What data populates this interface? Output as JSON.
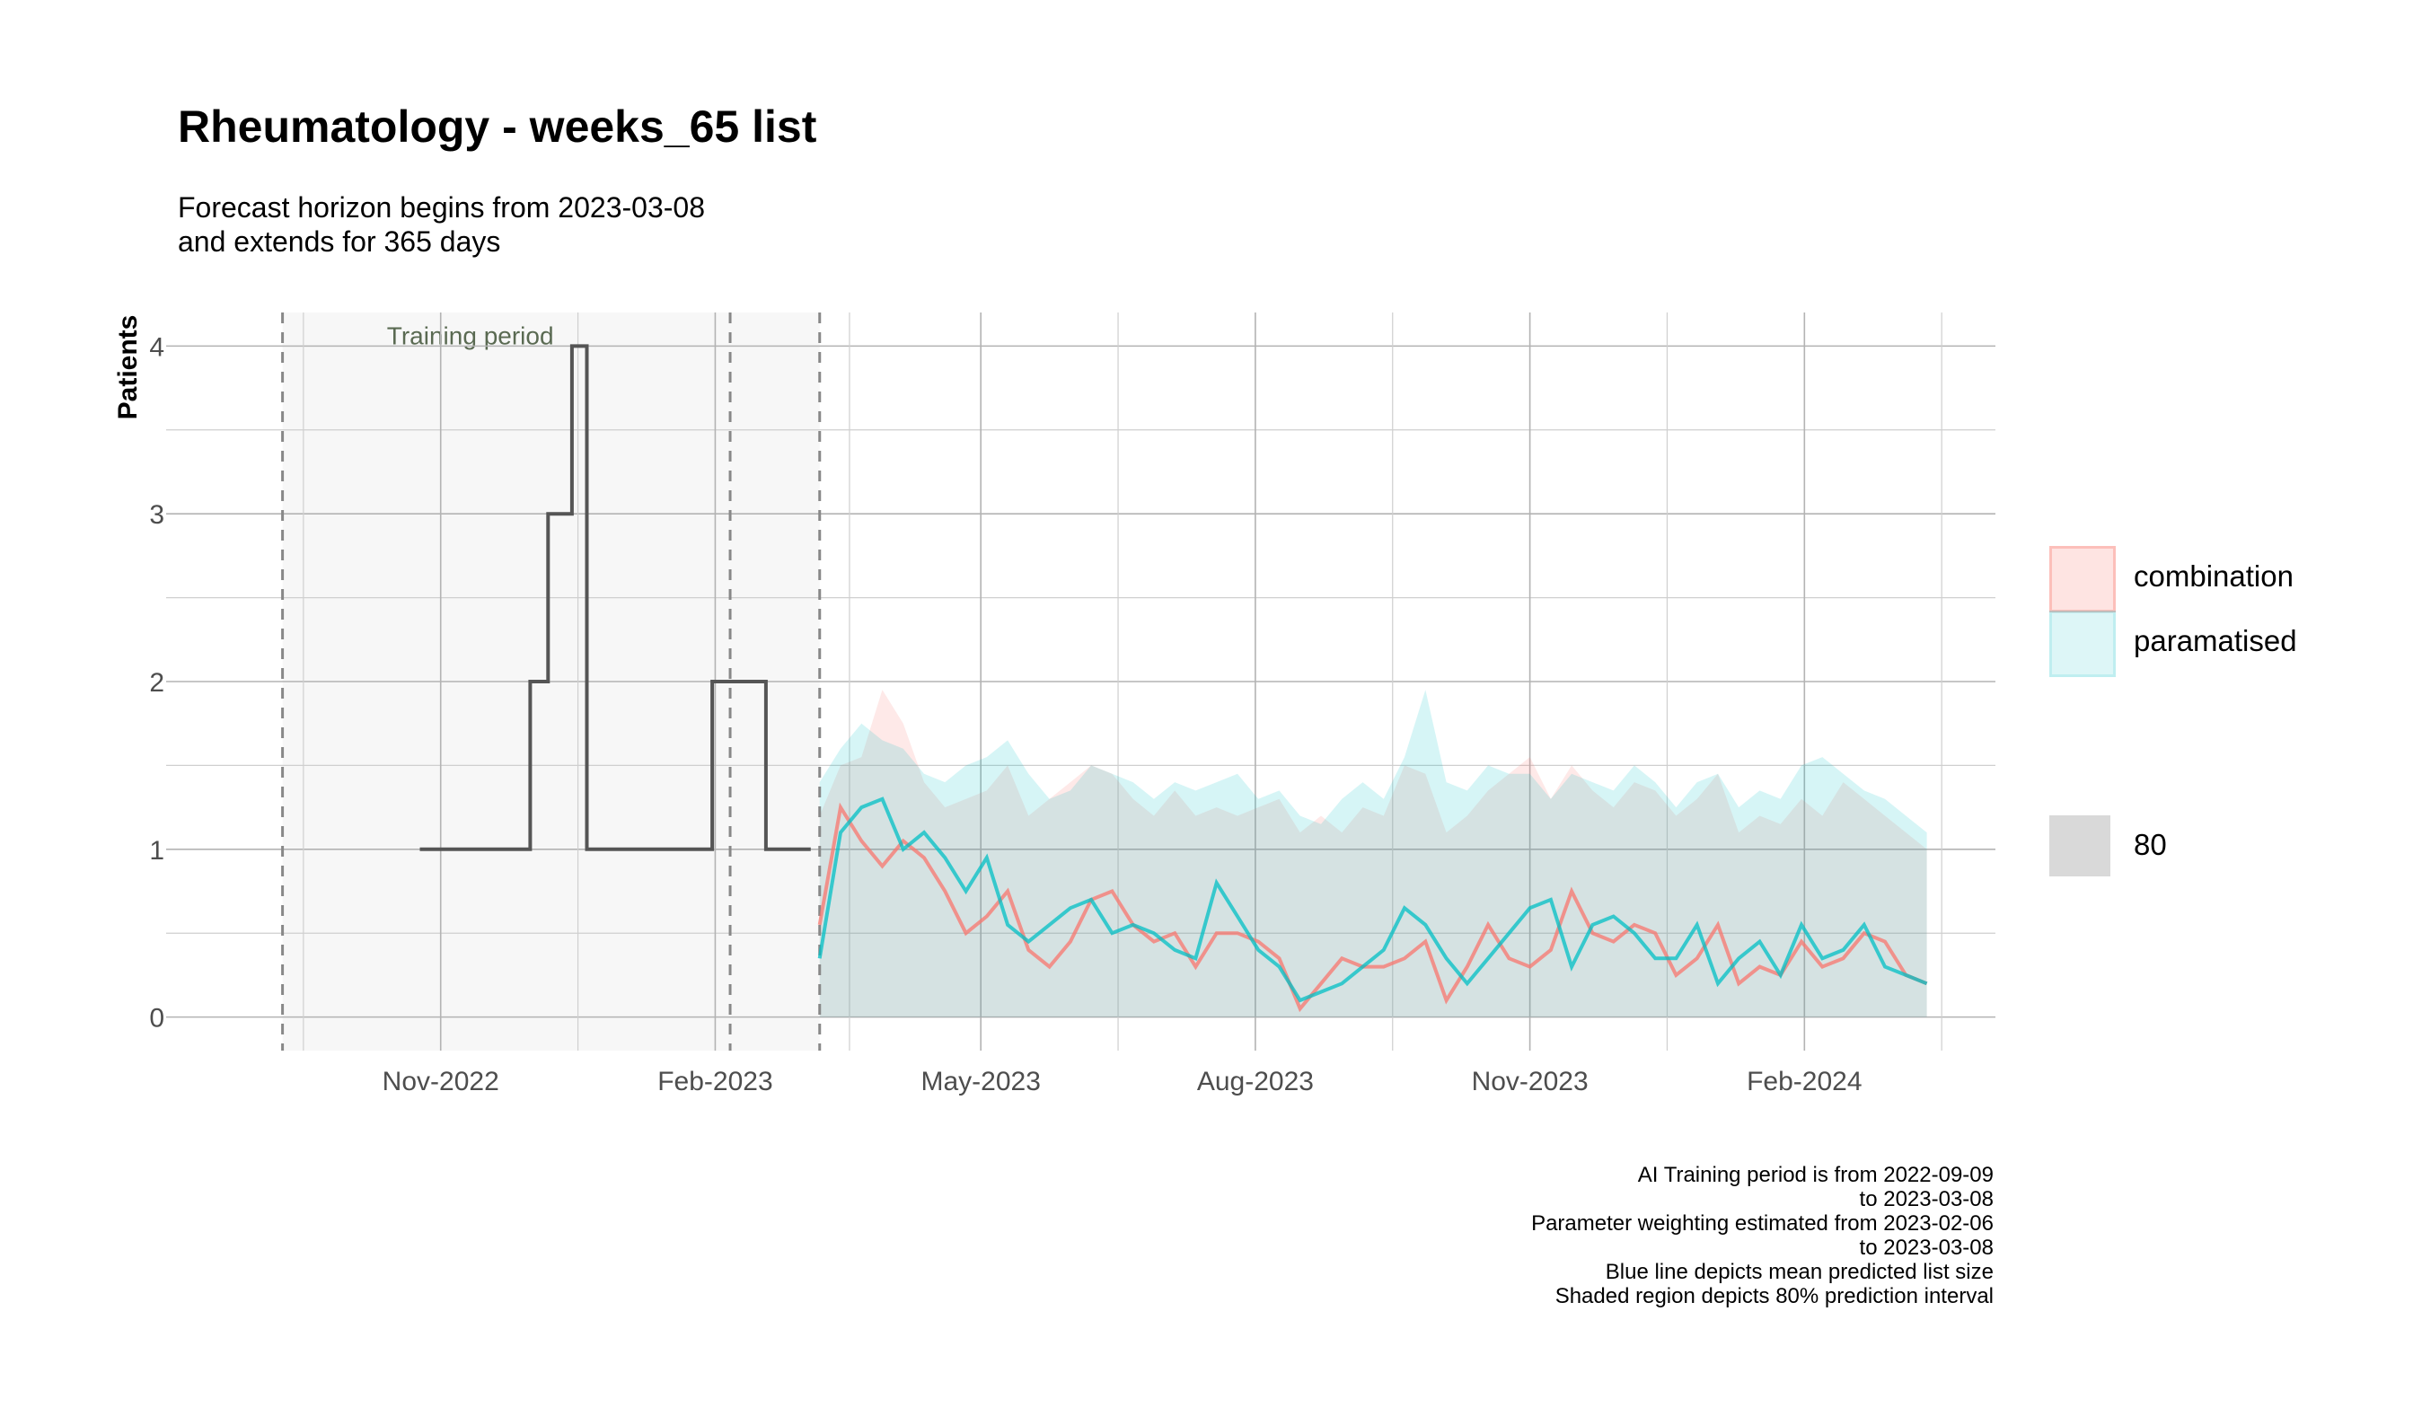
{
  "title": "Rheumatology - weeks_65 list",
  "subtitle": "Forecast horizon begins from 2023-03-08\nand extends for 365 days",
  "caption": "AI Training period is from 2022-09-09\nto 2023-03-08\nParameter weighting estimated from 2023-02-06\nto 2023-03-08\nBlue line depicts mean predicted list size\nShaded region depicts 80% prediction interval",
  "legend": {
    "fill_items": [
      {
        "label": "combination",
        "color": "#F8766D"
      },
      {
        "label": "paramatised",
        "color": "#00BFC4"
      }
    ],
    "interval_item": {
      "label": "80",
      "color": "#d9d9d9"
    }
  },
  "chart_data": {
    "type": "line",
    "title": "Rheumatology - weeks_65 list",
    "ylabel": "Patients",
    "xlabel": "",
    "xlim": [
      "2022-08-01",
      "2024-04-05"
    ],
    "ylim": [
      -0.2,
      4.2
    ],
    "y_ticks": [
      0,
      1,
      2,
      3,
      4
    ],
    "x_ticks": [
      {
        "date": "2022-11-01",
        "label": "Nov-2022"
      },
      {
        "date": "2023-02-01",
        "label": "Feb-2023"
      },
      {
        "date": "2023-05-01",
        "label": "May-2023"
      },
      {
        "date": "2023-08-01",
        "label": "Aug-2023"
      },
      {
        "date": "2023-11-01",
        "label": "Nov-2023"
      },
      {
        "date": "2024-02-01",
        "label": "Feb-2024"
      }
    ],
    "grid": true,
    "legend_position": "right",
    "training_shading": {
      "start": "2022-09-09",
      "end": "2023-03-08",
      "label": "Training period"
    },
    "vlines_dashed": [
      "2022-09-09",
      "2023-02-06",
      "2023-03-08"
    ],
    "observed": {
      "color": "#555555",
      "steps": [
        [
          "2022-10-25",
          1
        ],
        [
          "2022-12-01",
          2
        ],
        [
          "2022-12-07",
          3
        ],
        [
          "2022-12-15",
          4
        ],
        [
          "2022-12-20",
          1
        ],
        [
          "2023-01-31",
          2
        ],
        [
          "2023-02-18",
          1
        ],
        [
          "2023-03-05",
          1
        ]
      ]
    },
    "series": [
      {
        "name": "combination",
        "color": "#F8766D",
        "x": [
          "2023-03-08",
          "2023-03-15",
          "2023-03-22",
          "2023-03-29",
          "2023-04-05",
          "2023-04-12",
          "2023-04-19",
          "2023-04-26",
          "2023-05-03",
          "2023-05-10",
          "2023-05-17",
          "2023-05-24",
          "2023-05-31",
          "2023-06-07",
          "2023-06-14",
          "2023-06-21",
          "2023-06-28",
          "2023-07-05",
          "2023-07-12",
          "2023-07-19",
          "2023-07-26",
          "2023-08-02",
          "2023-08-09",
          "2023-08-16",
          "2023-08-23",
          "2023-08-30",
          "2023-09-06",
          "2023-09-13",
          "2023-09-20",
          "2023-09-27",
          "2023-10-04",
          "2023-10-11",
          "2023-10-18",
          "2023-10-25",
          "2023-11-01",
          "2023-11-08",
          "2023-11-15",
          "2023-11-22",
          "2023-11-29",
          "2023-12-06",
          "2023-12-13",
          "2023-12-20",
          "2023-12-27",
          "2024-01-03",
          "2024-01-10",
          "2024-01-17",
          "2024-01-24",
          "2024-01-31",
          "2024-02-07",
          "2024-02-14",
          "2024-02-21",
          "2024-02-28",
          "2024-03-06",
          "2024-03-13"
        ],
        "mean": [
          0.55,
          1.25,
          1.05,
          0.9,
          1.05,
          0.95,
          0.75,
          0.5,
          0.6,
          0.75,
          0.4,
          0.3,
          0.45,
          0.7,
          0.75,
          0.55,
          0.45,
          0.5,
          0.3,
          0.5,
          0.5,
          0.45,
          0.35,
          0.05,
          0.2,
          0.35,
          0.3,
          0.3,
          0.35,
          0.45,
          0.1,
          0.3,
          0.55,
          0.35,
          0.3,
          0.4,
          0.75,
          0.5,
          0.45,
          0.55,
          0.5,
          0.25,
          0.35,
          0.55,
          0.2,
          0.3,
          0.25,
          0.45,
          0.3,
          0.35,
          0.5,
          0.45,
          0.25,
          0.2
        ],
        "upper": [
          1.2,
          1.5,
          1.55,
          1.95,
          1.75,
          1.4,
          1.25,
          1.3,
          1.35,
          1.5,
          1.2,
          1.3,
          1.4,
          1.5,
          1.45,
          1.3,
          1.2,
          1.35,
          1.2,
          1.25,
          1.2,
          1.25,
          1.3,
          1.1,
          1.2,
          1.1,
          1.25,
          1.2,
          1.5,
          1.45,
          1.1,
          1.2,
          1.35,
          1.45,
          1.55,
          1.3,
          1.5,
          1.35,
          1.25,
          1.4,
          1.35,
          1.2,
          1.3,
          1.45,
          1.1,
          1.2,
          1.15,
          1.3,
          1.2,
          1.4,
          1.3,
          1.2,
          1.1,
          1.0
        ],
        "lower": [
          0,
          0,
          0,
          0,
          0,
          0,
          0,
          0,
          0,
          0,
          0,
          0,
          0,
          0,
          0,
          0,
          0,
          0,
          0,
          0,
          0,
          0,
          0,
          0,
          0,
          0,
          0,
          0,
          0,
          0,
          0,
          0,
          0,
          0,
          0,
          0,
          0,
          0,
          0,
          0,
          0,
          0,
          0,
          0,
          0,
          0,
          0,
          0,
          0,
          0,
          0,
          0,
          0,
          0
        ]
      },
      {
        "name": "paramatised",
        "color": "#00BFC4",
        "x": [
          "2023-03-08",
          "2023-03-15",
          "2023-03-22",
          "2023-03-29",
          "2023-04-05",
          "2023-04-12",
          "2023-04-19",
          "2023-04-26",
          "2023-05-03",
          "2023-05-10",
          "2023-05-17",
          "2023-05-24",
          "2023-05-31",
          "2023-06-07",
          "2023-06-14",
          "2023-06-21",
          "2023-06-28",
          "2023-07-05",
          "2023-07-12",
          "2023-07-19",
          "2023-07-26",
          "2023-08-02",
          "2023-08-09",
          "2023-08-16",
          "2023-08-23",
          "2023-08-30",
          "2023-09-06",
          "2023-09-13",
          "2023-09-20",
          "2023-09-27",
          "2023-10-04",
          "2023-10-11",
          "2023-10-18",
          "2023-10-25",
          "2023-11-01",
          "2023-11-08",
          "2023-11-15",
          "2023-11-22",
          "2023-11-29",
          "2023-12-06",
          "2023-12-13",
          "2023-12-20",
          "2023-12-27",
          "2024-01-03",
          "2024-01-10",
          "2024-01-17",
          "2024-01-24",
          "2024-01-31",
          "2024-02-07",
          "2024-02-14",
          "2024-02-21",
          "2024-02-28",
          "2024-03-06",
          "2024-03-13"
        ],
        "mean": [
          0.35,
          1.1,
          1.25,
          1.3,
          1.0,
          1.1,
          0.95,
          0.75,
          0.95,
          0.55,
          0.45,
          0.55,
          0.65,
          0.7,
          0.5,
          0.55,
          0.5,
          0.4,
          0.35,
          0.8,
          0.6,
          0.4,
          0.3,
          0.1,
          0.15,
          0.2,
          0.3,
          0.4,
          0.65,
          0.55,
          0.35,
          0.2,
          0.35,
          0.5,
          0.65,
          0.7,
          0.3,
          0.55,
          0.6,
          0.5,
          0.35,
          0.35,
          0.55,
          0.2,
          0.35,
          0.45,
          0.25,
          0.55,
          0.35,
          0.4,
          0.55,
          0.3,
          0.25,
          0.2
        ],
        "upper": [
          1.4,
          1.6,
          1.75,
          1.65,
          1.6,
          1.45,
          1.4,
          1.5,
          1.55,
          1.65,
          1.45,
          1.3,
          1.35,
          1.5,
          1.45,
          1.4,
          1.3,
          1.4,
          1.35,
          1.4,
          1.45,
          1.3,
          1.35,
          1.2,
          1.15,
          1.3,
          1.4,
          1.3,
          1.55,
          1.95,
          1.4,
          1.35,
          1.5,
          1.45,
          1.45,
          1.3,
          1.45,
          1.4,
          1.35,
          1.5,
          1.4,
          1.25,
          1.4,
          1.45,
          1.25,
          1.35,
          1.3,
          1.5,
          1.55,
          1.45,
          1.35,
          1.3,
          1.2,
          1.1
        ],
        "lower": [
          0,
          0,
          0,
          0,
          0,
          0,
          0,
          0,
          0,
          0,
          0,
          0,
          0,
          0,
          0,
          0,
          0,
          0,
          0,
          0,
          0,
          0,
          0,
          0,
          0,
          0,
          0,
          0,
          0,
          0,
          0,
          0,
          0,
          0,
          0,
          0,
          0,
          0,
          0,
          0,
          0,
          0,
          0,
          0,
          0,
          0,
          0,
          0,
          0,
          0,
          0,
          0,
          0,
          0
        ]
      }
    ]
  }
}
